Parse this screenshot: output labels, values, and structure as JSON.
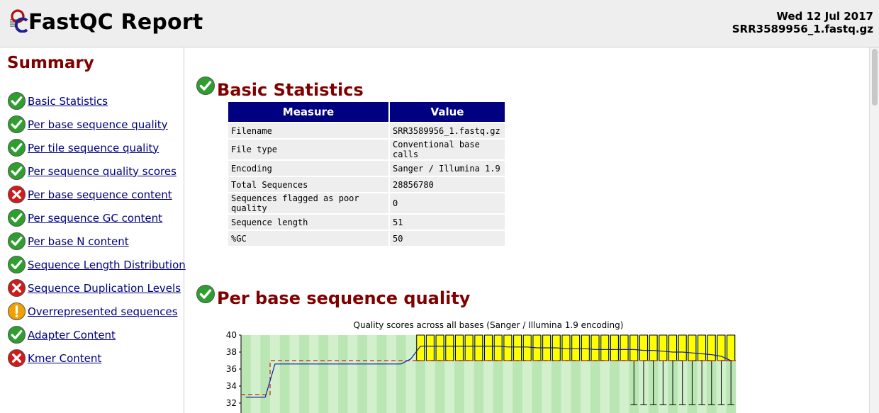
{
  "header": {
    "title": "FastQC Report",
    "date": "Wed 12 Jul 2017",
    "filename": "SRR3589956_1.fastq.gz"
  },
  "sidebar": {
    "title": "Summary",
    "items": [
      {
        "label": "Basic Statistics",
        "status": "pass"
      },
      {
        "label": "Per base sequence quality",
        "status": "pass"
      },
      {
        "label": "Per tile sequence quality",
        "status": "pass"
      },
      {
        "label": "Per sequence quality scores",
        "status": "pass"
      },
      {
        "label": "Per base sequence content",
        "status": "fail"
      },
      {
        "label": "Per sequence GC content",
        "status": "pass"
      },
      {
        "label": "Per base N content",
        "status": "pass"
      },
      {
        "label": "Sequence Length Distribution",
        "status": "pass"
      },
      {
        "label": "Sequence Duplication Levels",
        "status": "fail"
      },
      {
        "label": "Overrepresented sequences",
        "status": "warn"
      },
      {
        "label": "Adapter Content",
        "status": "pass"
      },
      {
        "label": "Kmer Content",
        "status": "fail"
      }
    ]
  },
  "basic_stats": {
    "title": "Basic Statistics",
    "headers": [
      "Measure",
      "Value"
    ],
    "rows": [
      [
        "Filename",
        "SRR3589956_1.fastq.gz"
      ],
      [
        "File type",
        "Conventional base calls"
      ],
      [
        "Encoding",
        "Sanger / Illumina 1.9"
      ],
      [
        "Total Sequences",
        "28856780"
      ],
      [
        "Sequences flagged as poor quality",
        "0"
      ],
      [
        "Sequence length",
        "51"
      ],
      [
        "%GC",
        "50"
      ]
    ]
  },
  "quality_section": {
    "title": "Per base sequence quality"
  },
  "colors": {
    "pass": "#2e9e2e",
    "fail": "#d11a1a",
    "warn": "#f0a000",
    "header_blue": "#000080",
    "title_red": "#800000"
  },
  "chart_data": {
    "type": "box",
    "title": "Quality scores across all bases (Sanger / Illumina 1.9 encoding)",
    "y_ticks": [
      "40",
      "38",
      "36",
      "34",
      "32"
    ],
    "ylim": [
      31,
      40
    ],
    "positions": 51,
    "median": [
      33,
      33,
      33,
      37,
      37,
      37,
      37,
      37,
      37,
      37,
      37,
      37,
      37,
      37,
      37,
      37,
      37,
      37,
      37,
      37,
      37,
      37,
      37,
      37,
      37,
      37,
      37,
      37,
      37,
      37,
      37,
      37,
      37,
      37,
      37,
      37,
      37,
      37,
      37,
      37,
      37,
      37,
      37,
      37,
      37,
      37,
      37,
      37,
      37,
      37,
      37
    ],
    "mean": [
      32.7,
      32.7,
      32.7,
      36.6,
      36.6,
      36.6,
      36.6,
      36.6,
      36.6,
      36.6,
      36.6,
      36.6,
      36.6,
      36.6,
      36.6,
      36.6,
      36.6,
      37.2,
      38.7,
      38.7,
      38.7,
      38.7,
      38.7,
      38.7,
      38.7,
      38.7,
      38.7,
      38.6,
      38.6,
      38.6,
      38.5,
      38.5,
      38.5,
      38.4,
      38.4,
      38.4,
      38.3,
      38.3,
      38.3,
      38.3,
      38.3,
      38.2,
      38.2,
      38.1,
      38.0,
      38.0,
      37.9,
      37.8,
      37.7,
      37.5,
      37.0
    ],
    "box_top": [
      null,
      null,
      null,
      null,
      null,
      null,
      null,
      null,
      null,
      null,
      null,
      null,
      null,
      null,
      null,
      null,
      null,
      null,
      40,
      40,
      40,
      40,
      40,
      40,
      40,
      40,
      40,
      40,
      40,
      40,
      40,
      40,
      40,
      40,
      40,
      40,
      40,
      40,
      40,
      40,
      40,
      40,
      40,
      40,
      40,
      40,
      40,
      40,
      40,
      40,
      40
    ],
    "box_bottom": [
      null,
      null,
      null,
      null,
      null,
      null,
      null,
      null,
      null,
      null,
      null,
      null,
      null,
      null,
      null,
      null,
      null,
      null,
      37,
      37,
      37,
      37,
      37,
      37,
      37,
      37,
      37,
      37,
      37,
      37,
      37,
      37,
      37,
      37,
      37,
      37,
      37,
      37,
      37,
      37,
      37,
      37,
      37,
      37,
      37,
      37,
      37,
      37,
      37,
      37,
      37
    ],
    "whisker_low": [
      null,
      null,
      null,
      null,
      null,
      null,
      null,
      null,
      null,
      null,
      null,
      null,
      null,
      null,
      null,
      null,
      null,
      null,
      null,
      null,
      null,
      null,
      null,
      null,
      null,
      null,
      null,
      null,
      null,
      null,
      null,
      null,
      null,
      null,
      null,
      null,
      null,
      null,
      null,
      null,
      31.8,
      31.8,
      31.8,
      31.8,
      31.8,
      31.8,
      31.8,
      31.8,
      31.8,
      31.8,
      31.8
    ]
  }
}
